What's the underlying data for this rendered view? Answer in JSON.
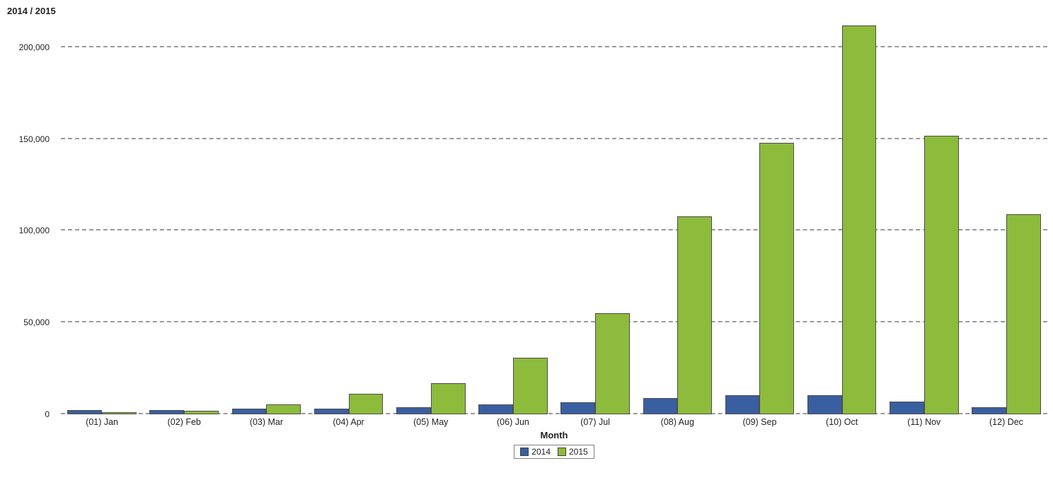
{
  "chart_data": {
    "type": "bar",
    "title": "2014 / 2015",
    "xlabel": "Month",
    "ylabel": "",
    "categories": [
      "(01) Jan",
      "(02) Feb",
      "(03) Mar",
      "(04) Apr",
      "(05) May",
      "(06) Jun",
      "(07) Jul",
      "(08) Aug",
      "(09) Sep",
      "(10) Oct",
      "(11) Nov",
      "(12) Dec"
    ],
    "series": [
      {
        "name": "2014",
        "color": "#3a5fa0",
        "values": [
          2500,
          2500,
          3000,
          3000,
          4000,
          5500,
          6500,
          9000,
          10500,
          10500,
          7000,
          4000
        ]
      },
      {
        "name": "2015",
        "color": "#8dbb3c",
        "values": [
          1200,
          2000,
          5500,
          11000,
          17000,
          31000,
          55000,
          108000,
          148000,
          212000,
          152000,
          109000
        ]
      }
    ],
    "yticks": {
      "values": [
        0,
        50000,
        100000,
        150000,
        200000
      ],
      "labels": [
        "0",
        "50,000",
        "100,000",
        "150,000",
        "200,000"
      ]
    },
    "ylim": [
      0,
      200000
    ],
    "grid": "dashed-horizontal",
    "legend_position": "bottom-center",
    "legend_labels": [
      "2014",
      "2015"
    ]
  },
  "colors": {
    "bar_border": "#4d4d4d",
    "gridline": "#9a9a9a",
    "text": "#222222",
    "series_2014": "#3a5fa0",
    "series_2015": "#8dbb3c"
  }
}
